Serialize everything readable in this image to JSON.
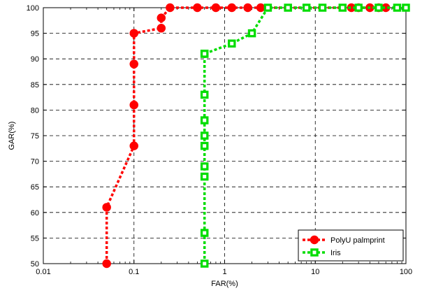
{
  "chart_data": {
    "type": "line",
    "xscale": "log",
    "xlim": [
      0.01,
      100
    ],
    "ylim": [
      50,
      100
    ],
    "grid": true,
    "xlabel": "FAR(%)",
    "ylabel": "GAR(%)",
    "xticks": [
      0.01,
      0.1,
      1,
      10,
      100
    ],
    "xtick_labels": [
      "0.01",
      "0.1",
      "1",
      "10",
      "100"
    ],
    "yticks": [
      50,
      55,
      60,
      65,
      70,
      75,
      80,
      85,
      90,
      95,
      100
    ],
    "ytick_labels": [
      "50",
      "55",
      "60",
      "65",
      "70",
      "75",
      "80",
      "85",
      "90",
      "95",
      "100"
    ],
    "legend_position": "bottom-right",
    "series": [
      {
        "name": "PolyU palmprint",
        "color": "#ff0000",
        "marker": "circle",
        "x": [
          0.05,
          0.05,
          0.1,
          0.1,
          0.1,
          0.1,
          0.2,
          0.2,
          0.25,
          0.5,
          0.8,
          1.2,
          1.8,
          2.5,
          25,
          30,
          40,
          50,
          60
        ],
        "y": [
          50,
          61,
          73,
          81,
          89,
          95,
          96,
          98,
          100,
          100,
          100,
          100,
          100,
          100,
          100,
          100,
          100,
          100,
          100
        ]
      },
      {
        "name": "Iris",
        "color": "#00dd00",
        "marker": "square",
        "x": [
          0.6,
          0.6,
          0.6,
          0.6,
          0.6,
          0.6,
          0.6,
          0.6,
          0.6,
          0.6,
          0.6,
          1.2,
          2.0,
          3.0,
          5.0,
          8.0,
          12.0,
          20.0,
          30.0,
          50.0,
          80.0,
          100.0
        ],
        "y": [
          50,
          56,
          67,
          69,
          73,
          75,
          78,
          83,
          91,
          91,
          91,
          93,
          95,
          100,
          100,
          100,
          100,
          100,
          100,
          100,
          100,
          100
        ]
      }
    ]
  }
}
